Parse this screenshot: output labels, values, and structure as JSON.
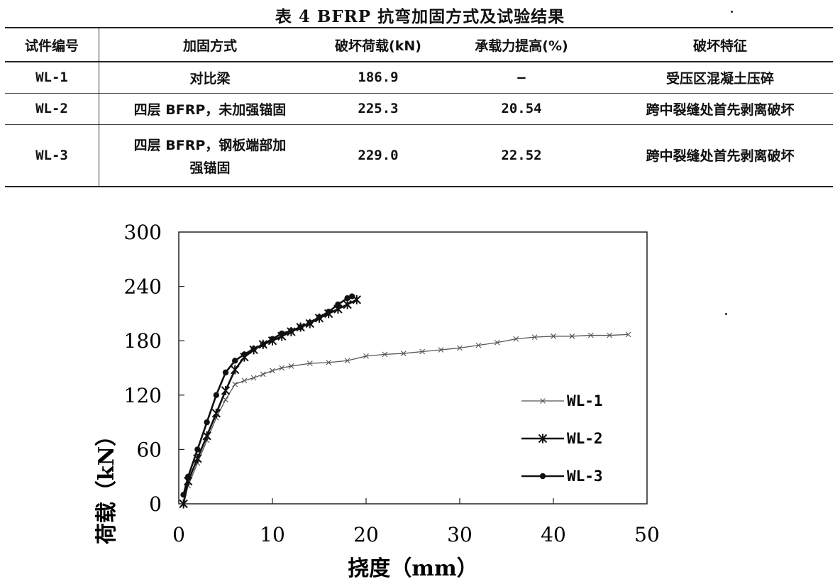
{
  "table": {
    "title": "表 4 BFRP 抗弯加固方式及试验结果",
    "headers": [
      "试件编号",
      "加固方式",
      "破坏荷载(kN)",
      "承载力提高(%)",
      "破坏特征"
    ],
    "rows": [
      {
        "id": "WL-1",
        "method": "对比梁",
        "load": "186.9",
        "increase": "—",
        "failure": "受压区混凝土压碎"
      },
      {
        "id": "WL-2",
        "method": "四层 BFRP，未加强锚固",
        "load": "225.3",
        "increase": "20.54",
        "failure": "跨中裂缝处首先剥离破坏"
      },
      {
        "id": "WL-3",
        "method_line1": "四层 BFRP，钢板端部加",
        "method_line2": "强锚固",
        "load": "229.0",
        "increase": "22.52",
        "failure": "跨中裂缝处首先剥离破坏"
      }
    ]
  },
  "chart_data": {
    "type": "line",
    "xlabel": "挠度（mm）",
    "ylabel": "荷载（kN）",
    "xlim": [
      0,
      50
    ],
    "ylim": [
      0,
      300
    ],
    "xticks": [
      "0",
      "10",
      "20",
      "30",
      "40",
      "50"
    ],
    "yticks": [
      "0",
      "60",
      "120",
      "180",
      "240",
      "300"
    ],
    "grid": false,
    "legend_position": "right-middle",
    "series": [
      {
        "name": "WL-1",
        "marker": "x",
        "color": "#555555",
        "points": [
          [
            0.5,
            0
          ],
          [
            1,
            20
          ],
          [
            2,
            45
          ],
          [
            3,
            70
          ],
          [
            4,
            95
          ],
          [
            5,
            115
          ],
          [
            6,
            132
          ],
          [
            7,
            136
          ],
          [
            8,
            139
          ],
          [
            9,
            143
          ],
          [
            10,
            147
          ],
          [
            11,
            150
          ],
          [
            12,
            152
          ],
          [
            14,
            155
          ],
          [
            16,
            156
          ],
          [
            18,
            158
          ],
          [
            20,
            163
          ],
          [
            22,
            165
          ],
          [
            24,
            166
          ],
          [
            26,
            168
          ],
          [
            28,
            170
          ],
          [
            30,
            172
          ],
          [
            32,
            175
          ],
          [
            34,
            178
          ],
          [
            36,
            182
          ],
          [
            38,
            184
          ],
          [
            40,
            185
          ],
          [
            42,
            185
          ],
          [
            44,
            186
          ],
          [
            46,
            186
          ],
          [
            48,
            186.9
          ]
        ]
      },
      {
        "name": "WL-2",
        "marker": "asterisk",
        "color": "#111111",
        "points": [
          [
            0.5,
            0
          ],
          [
            1,
            25
          ],
          [
            2,
            50
          ],
          [
            3,
            75
          ],
          [
            4,
            100
          ],
          [
            5,
            125
          ],
          [
            6,
            148
          ],
          [
            7,
            162
          ],
          [
            8,
            170
          ],
          [
            9,
            176
          ],
          [
            10,
            180
          ],
          [
            11,
            185
          ],
          [
            12,
            190
          ],
          [
            13,
            195
          ],
          [
            14,
            199
          ],
          [
            15,
            205
          ],
          [
            16,
            210
          ],
          [
            17,
            215
          ],
          [
            18,
            220
          ],
          [
            19,
            225.3
          ]
        ]
      },
      {
        "name": "WL-3",
        "marker": "dot",
        "color": "#111111",
        "points": [
          [
            0.5,
            10
          ],
          [
            1,
            30
          ],
          [
            2,
            60
          ],
          [
            3,
            90
          ],
          [
            4,
            120
          ],
          [
            5,
            145
          ],
          [
            6,
            158
          ],
          [
            7,
            165
          ],
          [
            8,
            171
          ],
          [
            9,
            176
          ],
          [
            10,
            182
          ],
          [
            11,
            188
          ],
          [
            12,
            191
          ],
          [
            13,
            195
          ],
          [
            14,
            200
          ],
          [
            15,
            206
          ],
          [
            16,
            212
          ],
          [
            17,
            220
          ],
          [
            18,
            227
          ],
          [
            18.5,
            229.0
          ]
        ]
      }
    ]
  }
}
